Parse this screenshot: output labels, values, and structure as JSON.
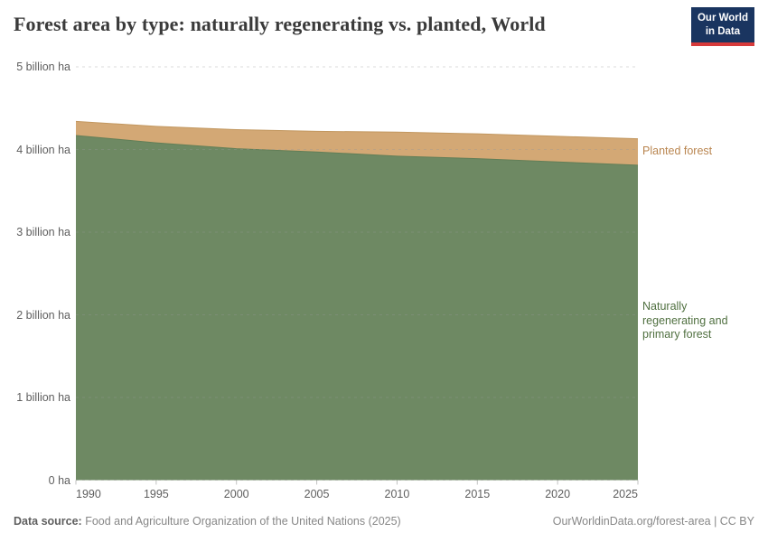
{
  "header": {
    "title": "Forest area by type: naturally regenerating vs. planted, World",
    "logo_line1": "Our World",
    "logo_line2": "in Data"
  },
  "chart_data": {
    "type": "area",
    "stacked": true,
    "title": "Forest area by type: naturally regenerating vs. planted, World",
    "unit": "billion ha",
    "x": [
      1990,
      1995,
      2000,
      2005,
      2010,
      2015,
      2020,
      2025
    ],
    "xlim": [
      1990,
      2025
    ],
    "ylim": [
      0,
      5
    ],
    "series": [
      {
        "name": "Naturally regenerating and primary forest",
        "color": "#6e8963",
        "edge_color": "#627e57",
        "label_color": "#507040",
        "values": [
          4.17,
          4.08,
          4.01,
          3.97,
          3.92,
          3.89,
          3.85,
          3.81
        ]
      },
      {
        "name": "Planted forest",
        "color": "#d3a875",
        "edge_color": "#c2975f",
        "label_color": "#b9854f",
        "values": [
          0.17,
          0.2,
          0.23,
          0.25,
          0.29,
          0.3,
          0.31,
          0.32
        ]
      }
    ],
    "yticks": [
      {
        "value": 5,
        "label": "5 billion ha"
      },
      {
        "value": 4,
        "label": "4 billion ha"
      },
      {
        "value": 3,
        "label": "3 billion ha"
      },
      {
        "value": 2,
        "label": "2 billion ha"
      },
      {
        "value": 1,
        "label": "1 billion ha"
      },
      {
        "value": 0,
        "label": "0 ha"
      }
    ],
    "xticks": [
      "1990",
      "1995",
      "2000",
      "2005",
      "2010",
      "2015",
      "2020",
      "2025"
    ],
    "grid": "dashed-horizontal",
    "legend_position": "right-of-plot"
  },
  "footer": {
    "source_label": "Data source:",
    "source_text": " Food and Agriculture Organization of the United Nations (2025)",
    "right_text": "OurWorldinData.org/forest-area | CC BY"
  },
  "colors": {
    "background": "#ffffff",
    "title": "#3a3a3a",
    "axis_text": "#5e5e5e",
    "gridline": "#d8d8d8",
    "logo_bg": "#1a3560",
    "logo_red": "#d73a3a"
  }
}
